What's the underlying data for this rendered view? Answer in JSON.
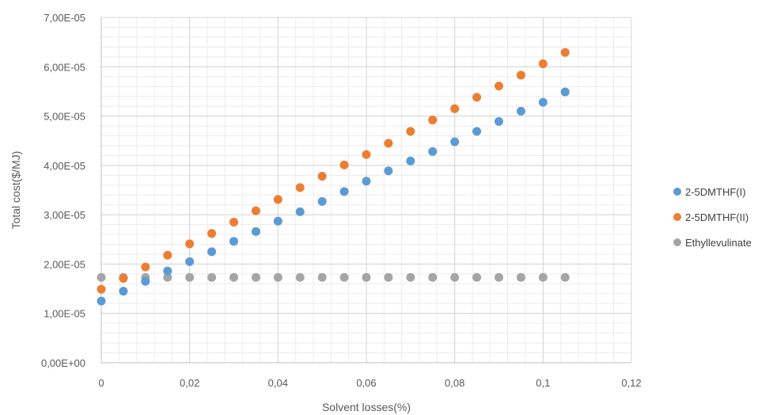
{
  "chart_data": {
    "type": "scatter",
    "title": "",
    "xlabel": "Solvent losses(%)",
    "ylabel": "Total cost($/MJ)",
    "xlim": [
      0,
      0.12
    ],
    "ylim": [
      0,
      7e-05
    ],
    "x_ticks": [
      0,
      0.02,
      0.04,
      0.06,
      0.08,
      0.1,
      0.12
    ],
    "x_tick_labels": [
      "0",
      "0,02",
      "0,04",
      "0,06",
      "0,08",
      "0,1",
      "0,12"
    ],
    "y_ticks": [
      0,
      1e-05,
      2e-05,
      3e-05,
      4e-05,
      5e-05,
      6e-05,
      7e-05
    ],
    "y_tick_labels": [
      "0,00E+00",
      "1,00E-05",
      "2,00E-05",
      "3,00E-05",
      "4,00E-05",
      "5,00E-05",
      "6,00E-05",
      "7,00E-05"
    ],
    "grid": true,
    "minor_grid": true,
    "legend": "right",
    "x": [
      0,
      0.005,
      0.01,
      0.015,
      0.02,
      0.025,
      0.03,
      0.035,
      0.04,
      0.045,
      0.05,
      0.055,
      0.06,
      0.065,
      0.07,
      0.075,
      0.08,
      0.085,
      0.09,
      0.095,
      0.1,
      0.105
    ],
    "series": [
      {
        "name": "2-5DMTHF(I)",
        "color": "#5B9BD5",
        "values": [
          1.25e-05,
          1.45e-05,
          1.65e-05,
          1.86e-05,
          2.05e-05,
          2.25e-05,
          2.46e-05,
          2.66e-05,
          2.87e-05,
          3.06e-05,
          3.27e-05,
          3.47e-05,
          3.68e-05,
          3.89e-05,
          4.09e-05,
          4.28e-05,
          4.48e-05,
          4.69e-05,
          4.89e-05,
          5.1e-05,
          5.28e-05,
          5.49e-05
        ]
      },
      {
        "name": "2-5DMTHF(II)",
        "color": "#ED7D31",
        "values": [
          1.49e-05,
          1.71e-05,
          1.94e-05,
          2.18e-05,
          2.41e-05,
          2.62e-05,
          2.85e-05,
          3.08e-05,
          3.31e-05,
          3.55e-05,
          3.78e-05,
          4.01e-05,
          4.22e-05,
          4.45e-05,
          4.69e-05,
          4.92e-05,
          5.15e-05,
          5.38e-05,
          5.61e-05,
          5.83e-05,
          6.06e-05,
          6.29e-05
        ]
      },
      {
        "name": "Ethyllevulinate",
        "color": "#A5A5A5",
        "values": [
          1.73e-05,
          1.73e-05,
          1.73e-05,
          1.73e-05,
          1.73e-05,
          1.73e-05,
          1.73e-05,
          1.73e-05,
          1.73e-05,
          1.73e-05,
          1.73e-05,
          1.73e-05,
          1.73e-05,
          1.73e-05,
          1.73e-05,
          1.73e-05,
          1.73e-05,
          1.73e-05,
          1.73e-05,
          1.73e-05,
          1.73e-05,
          1.73e-05
        ]
      }
    ]
  }
}
